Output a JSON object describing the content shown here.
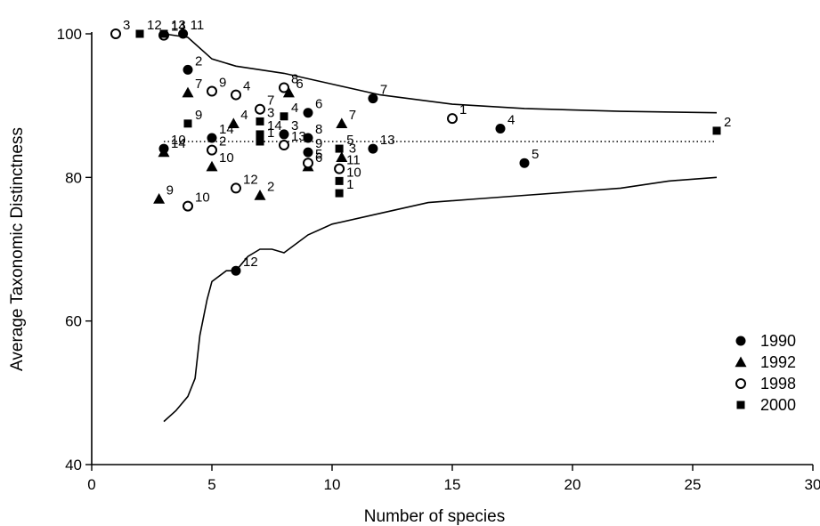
{
  "chart_data": {
    "type": "scatter",
    "xlabel": "Number of species",
    "ylabel": "Average Taxonomic Distinctness",
    "xlim": [
      0,
      30
    ],
    "ylim": [
      40,
      100
    ],
    "xticks": [
      0,
      5,
      10,
      15,
      20,
      25,
      30
    ],
    "yticks": [
      40,
      60,
      80,
      100
    ],
    "xtick_labels": [
      "0",
      "5",
      "10",
      "15",
      "20",
      "25",
      "30"
    ],
    "ytick_labels": [
      "40",
      "60",
      "80",
      "100"
    ],
    "mean_line": {
      "y": 85,
      "style": "dotted"
    },
    "upper_limit": [
      [
        3,
        100
      ],
      [
        4,
        99.5
      ],
      [
        5,
        96.5
      ],
      [
        6,
        95.5
      ],
      [
        8,
        94.5
      ],
      [
        10,
        93
      ],
      [
        12,
        91.5
      ],
      [
        15,
        90.2
      ],
      [
        18,
        89.6
      ],
      [
        22,
        89.2
      ],
      [
        26,
        89
      ]
    ],
    "lower_limit": [
      [
        3,
        46
      ],
      [
        3.5,
        47.5
      ],
      [
        4,
        49.5
      ],
      [
        4.3,
        52
      ],
      [
        4.5,
        58
      ],
      [
        4.8,
        63
      ],
      [
        5,
        65.5
      ],
      [
        5.6,
        67
      ],
      [
        6,
        67
      ],
      [
        6.5,
        69
      ],
      [
        7,
        70
      ],
      [
        7.5,
        70
      ],
      [
        8,
        69.5
      ],
      [
        9,
        72
      ],
      [
        10,
        73.5
      ],
      [
        12,
        75
      ],
      [
        14,
        76.5
      ],
      [
        16,
        77
      ],
      [
        18,
        77.5
      ],
      [
        20,
        78
      ],
      [
        22,
        78.5
      ],
      [
        24,
        79.5
      ],
      [
        26,
        80
      ]
    ],
    "legend_position": "bottom-right",
    "series": [
      {
        "name": "1990",
        "marker": "filled-circle",
        "points": [
          {
            "x": 3.8,
            "y": 100,
            "label": "11"
          },
          {
            "x": 4,
            "y": 95,
            "label": "2"
          },
          {
            "x": 3,
            "y": 84,
            "label": "10"
          },
          {
            "x": 5,
            "y": 85.5,
            "label": "14"
          },
          {
            "x": 6,
            "y": 67,
            "label": "12"
          },
          {
            "x": 8,
            "y": 86,
            "label": "3"
          },
          {
            "x": 9,
            "y": 89,
            "label": "6"
          },
          {
            "x": 9,
            "y": 85.5,
            "label": "8"
          },
          {
            "x": 9,
            "y": 83.5,
            "label": "9"
          },
          {
            "x": 11.7,
            "y": 91,
            "label": "7"
          },
          {
            "x": 11.7,
            "y": 84,
            "label": "13"
          },
          {
            "x": 17,
            "y": 86.8,
            "label": "4"
          },
          {
            "x": 18,
            "y": 82,
            "label": "5"
          }
        ]
      },
      {
        "name": "1992",
        "marker": "filled-triangle",
        "points": [
          {
            "x": 4,
            "y": 91.8,
            "label": "7"
          },
          {
            "x": 3,
            "y": 83.5,
            "label": "14"
          },
          {
            "x": 2.8,
            "y": 77,
            "label": "9"
          },
          {
            "x": 5,
            "y": 81.5,
            "label": "10"
          },
          {
            "x": 5.9,
            "y": 87.5,
            "label": "4"
          },
          {
            "x": 7,
            "y": 77.5,
            "label": "2"
          },
          {
            "x": 8.2,
            "y": 91.8,
            "label": "6"
          },
          {
            "x": 9,
            "y": 81.5,
            "label": "6"
          },
          {
            "x": 10.4,
            "y": 87.5,
            "label": "7"
          },
          {
            "x": 10.4,
            "y": 82.8,
            "label": "3"
          }
        ]
      },
      {
        "name": "1998",
        "marker": "open-circle",
        "points": [
          {
            "x": 1,
            "y": 100,
            "label": "3"
          },
          {
            "x": 3,
            "y": 99.8,
            "label": "14"
          },
          {
            "x": 5,
            "y": 92,
            "label": "9"
          },
          {
            "x": 5,
            "y": 83.8,
            "label": "2"
          },
          {
            "x": 4,
            "y": 76,
            "label": "10"
          },
          {
            "x": 6,
            "y": 91.5,
            "label": "4"
          },
          {
            "x": 7,
            "y": 89.5,
            "label": "7"
          },
          {
            "x": 6,
            "y": 78.5,
            "label": "12"
          },
          {
            "x": 8,
            "y": 92.5,
            "label": "8"
          },
          {
            "x": 8,
            "y": 84.5,
            "label": "13"
          },
          {
            "x": 9,
            "y": 82,
            "label": "5"
          },
          {
            "x": 10.3,
            "y": 81.2,
            "label": "11"
          },
          {
            "x": 15,
            "y": 88.2,
            "label": "1"
          }
        ]
      },
      {
        "name": "2000",
        "marker": "filled-square",
        "points": [
          {
            "x": 2,
            "y": 100,
            "label": "12"
          },
          {
            "x": 3,
            "y": 100,
            "label": "13"
          },
          {
            "x": 4,
            "y": 87.5,
            "label": "9"
          },
          {
            "x": 7,
            "y": 87.8,
            "label": "3"
          },
          {
            "x": 7,
            "y": 86,
            "label": "14"
          },
          {
            "x": 7,
            "y": 85,
            "label": "1"
          },
          {
            "x": 8,
            "y": 88.5,
            "label": "4"
          },
          {
            "x": 10.3,
            "y": 84,
            "label": "5"
          },
          {
            "x": 10.3,
            "y": 79.5,
            "label": "10"
          },
          {
            "x": 10.3,
            "y": 77.8,
            "label": "1"
          },
          {
            "x": 26,
            "y": 86.5,
            "label": "2"
          }
        ]
      }
    ]
  }
}
